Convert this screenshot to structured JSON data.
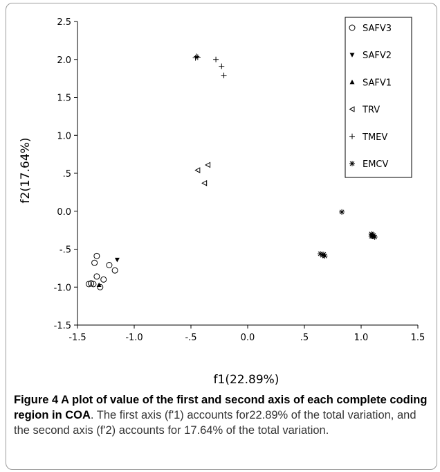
{
  "chart_data": {
    "type": "scatter",
    "xlabel": "f1(22.89%)",
    "ylabel": "f2(17.64%)",
    "xlim": [
      -1.5,
      1.5
    ],
    "ylim": [
      -1.5,
      2.5
    ],
    "x_ticks": [
      {
        "value": -1.5,
        "label": "-1.5"
      },
      {
        "value": -1.0,
        "label": "-1.0"
      },
      {
        "value": -0.5,
        "label": "-.5"
      },
      {
        "value": 0.0,
        "label": "0.0"
      },
      {
        "value": 0.5,
        "label": ".5"
      },
      {
        "value": 1.0,
        "label": "1.0"
      },
      {
        "value": 1.5,
        "label": "1.5"
      }
    ],
    "y_ticks": [
      {
        "value": 2.5,
        "label": "2.5"
      },
      {
        "value": 2.0,
        "label": "2.0"
      },
      {
        "value": 1.5,
        "label": "1.5"
      },
      {
        "value": 1.0,
        "label": "1.0"
      },
      {
        "value": 0.5,
        "label": ".5"
      },
      {
        "value": 0.0,
        "label": "0.0"
      },
      {
        "value": -0.5,
        "label": "-.5"
      },
      {
        "value": -1.0,
        "label": "-1.0"
      },
      {
        "value": -1.5,
        "label": "-1.5"
      }
    ],
    "grid": false,
    "legend_position": "top-right",
    "series": [
      {
        "name": "SAFV3",
        "marker": "circle",
        "points": [
          [
            -1.33,
            -0.59
          ],
          [
            -1.35,
            -0.68
          ],
          [
            -1.22,
            -0.71
          ],
          [
            -1.17,
            -0.78
          ],
          [
            -1.33,
            -0.86
          ],
          [
            -1.27,
            -0.9
          ],
          [
            -1.38,
            -0.95
          ],
          [
            -1.4,
            -0.96
          ],
          [
            -1.36,
            -0.96
          ],
          [
            -1.3,
            -1.0
          ]
        ]
      },
      {
        "name": "SAFV2",
        "marker": "triangle-down",
        "points": [
          [
            -1.15,
            -0.64
          ]
        ]
      },
      {
        "name": "SAFV1",
        "marker": "triangle-up",
        "points": [
          [
            -1.31,
            -0.97
          ]
        ]
      },
      {
        "name": "TRV",
        "marker": "triangle-left",
        "points": [
          [
            -0.35,
            0.61
          ],
          [
            -0.44,
            0.54
          ],
          [
            -0.38,
            0.37
          ]
        ]
      },
      {
        "name": "TMEV",
        "marker": "plus",
        "points": [
          [
            -0.46,
            2.02
          ],
          [
            -0.44,
            2.03
          ],
          [
            -0.45,
            2.04
          ],
          [
            -0.28,
            2.0
          ],
          [
            -0.23,
            1.91
          ],
          [
            -0.21,
            1.79
          ]
        ]
      },
      {
        "name": "EMCV",
        "marker": "asterisk",
        "points": [
          [
            0.83,
            -0.01
          ],
          [
            0.64,
            -0.56
          ],
          [
            0.66,
            -0.58
          ],
          [
            0.68,
            -0.59
          ],
          [
            0.67,
            -0.57
          ],
          [
            1.09,
            -0.3
          ],
          [
            1.1,
            -0.31
          ],
          [
            1.11,
            -0.32
          ],
          [
            1.1,
            -0.33
          ],
          [
            1.12,
            -0.34
          ],
          [
            1.09,
            -0.33
          ]
        ]
      }
    ]
  },
  "caption": {
    "title": "Figure 4 A plot of value of the first and second axis of each complete coding region in COA",
    "body": ". The first axis (f'1) accounts for22.89% of the total variation, and the second axis (f'2) accounts for 17.64% of the total variation."
  }
}
